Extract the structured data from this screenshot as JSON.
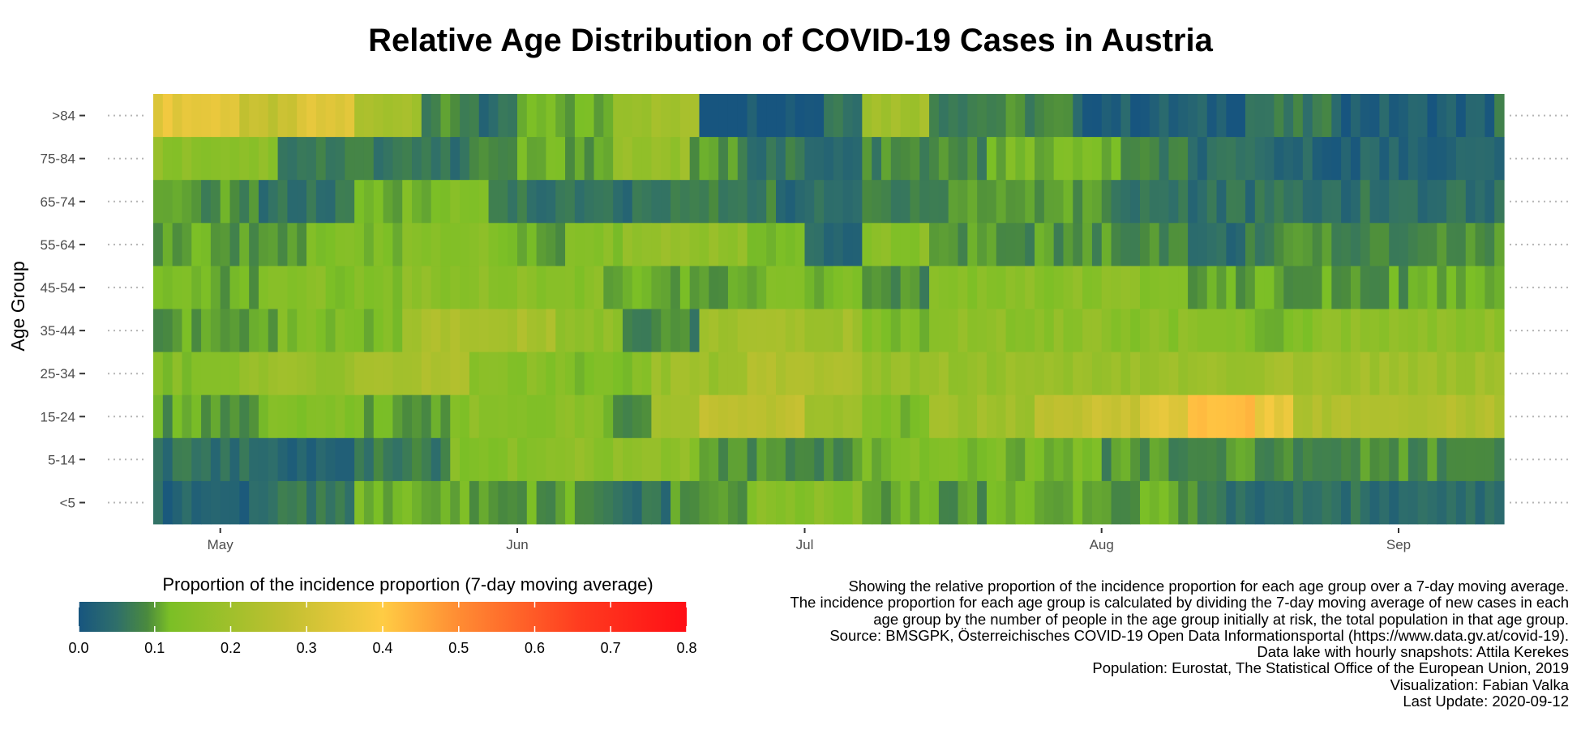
{
  "title": "Relative Age Distribution of COVID-19 Cases in Austria",
  "y_axis_title": "Age Group",
  "legend": {
    "title": "Proportion of the incidence proportion (7-day moving average)",
    "ticks": [
      "0.0",
      "0.1",
      "0.2",
      "0.3",
      "0.4",
      "0.5",
      "0.6",
      "0.7",
      "0.8"
    ],
    "range": [
      0,
      0.8
    ],
    "colors": [
      "#17557f",
      "#2f6f6a",
      "#4a8a3e",
      "#7bbf26",
      "#c0c030",
      "#ffcc44",
      "#ff8c33",
      "#ff3b1f",
      "#ff0e15"
    ],
    "color_stops": [
      0.0,
      0.05,
      0.09,
      0.12,
      0.27,
      0.4,
      0.5,
      0.66,
      0.8
    ]
  },
  "caption": [
    "Showing the relative proportion of the incidence proportion for each age group over a 7-day moving average.",
    "The incidence proportion for each age group is calculated by dividing the 7-day moving average of new cases in each",
    "age group by the number of people in the age group initially at risk, the total population in that age group.",
    "Source: BMSGPK, Österreichisches COVID-19 Open Data Informationsportal (https://www.data.gv.at/covid-19).",
    "Data lake with hourly snapshots: Attila Kerekes",
    "Population: Eurostat, The Statistical Office of the European Union, 2019",
    "Visualization: Fabian Valka",
    "Last Update: 2020-09-12"
  ],
  "chart_data": {
    "type": "heatmap",
    "title": "Relative Age Distribution of COVID-19 Cases in Austria",
    "ylabel": "Age Group",
    "xlabel": "",
    "x_ticks": [
      "May",
      "Jun",
      "Jul",
      "Aug",
      "Sep"
    ],
    "x_tick_dates": [
      "2020-05-01",
      "2020-06-01",
      "2020-07-01",
      "2020-08-01",
      "2020-09-01"
    ],
    "x_range": [
      "2020-04-24",
      "2020-09-12"
    ],
    "grid": false,
    "rows": [
      {
        "label": ">84",
        "segments": [
          {
            "from": "2020-04-24",
            "value": 0.35
          },
          {
            "from": "2020-05-03",
            "value": 0.27
          },
          {
            "from": "2020-05-09",
            "value": 0.33
          },
          {
            "from": "2020-05-15",
            "value": 0.22
          },
          {
            "from": "2020-05-22",
            "value": 0.08
          },
          {
            "from": "2020-05-28",
            "value": 0.04
          },
          {
            "from": "2020-06-01",
            "value": 0.11
          },
          {
            "from": "2020-06-11",
            "value": 0.2
          },
          {
            "from": "2020-06-19",
            "value": 0.22
          },
          {
            "from": "2020-06-20",
            "value": 0.01
          },
          {
            "from": "2020-07-03",
            "value": 0.07
          },
          {
            "from": "2020-07-07",
            "value": 0.21
          },
          {
            "from": "2020-07-14",
            "value": 0.08
          },
          {
            "from": "2020-07-29",
            "value": 0.02
          },
          {
            "from": "2020-08-16",
            "value": 0.06
          },
          {
            "from": "2020-08-26",
            "value": 0.02
          },
          {
            "from": "2020-09-11",
            "value": 0.08
          }
        ]
      },
      {
        "label": "75-84",
        "segments": [
          {
            "from": "2020-04-24",
            "value": 0.16
          },
          {
            "from": "2020-05-07",
            "value": 0.07
          },
          {
            "from": "2020-05-23",
            "value": 0.05
          },
          {
            "from": "2020-05-27",
            "value": 0.08
          },
          {
            "from": "2020-06-01",
            "value": 0.11
          },
          {
            "from": "2020-06-11",
            "value": 0.18
          },
          {
            "from": "2020-06-19",
            "value": 0.09
          },
          {
            "from": "2020-06-25",
            "value": 0.06
          },
          {
            "from": "2020-07-01",
            "value": 0.03
          },
          {
            "from": "2020-07-07",
            "value": 0.08
          },
          {
            "from": "2020-07-20",
            "value": 0.12
          },
          {
            "from": "2020-08-03",
            "value": 0.07
          },
          {
            "from": "2020-08-10",
            "value": 0.04
          },
          {
            "from": "2020-08-20",
            "value": 0.03
          }
        ]
      },
      {
        "label": "65-74",
        "segments": [
          {
            "from": "2020-04-24",
            "value": 0.09
          },
          {
            "from": "2020-05-05",
            "value": 0.05
          },
          {
            "from": "2020-05-15",
            "value": 0.11
          },
          {
            "from": "2020-05-20",
            "value": 0.13
          },
          {
            "from": "2020-05-29",
            "value": 0.07
          },
          {
            "from": "2020-06-03",
            "value": 0.05
          },
          {
            "from": "2020-06-16",
            "value": 0.07
          },
          {
            "from": "2020-06-28",
            "value": 0.04
          },
          {
            "from": "2020-07-07",
            "value": 0.08
          },
          {
            "from": "2020-07-16",
            "value": 0.1
          },
          {
            "from": "2020-08-02",
            "value": 0.06
          },
          {
            "from": "2020-08-10",
            "value": 0.05
          }
        ]
      },
      {
        "label": "55-64",
        "segments": [
          {
            "from": "2020-04-24",
            "value": 0.1
          },
          {
            "from": "2020-05-10",
            "value": 0.12
          },
          {
            "from": "2020-05-20",
            "value": 0.15
          },
          {
            "from": "2020-05-30",
            "value": 0.1
          },
          {
            "from": "2020-06-06",
            "value": 0.14
          },
          {
            "from": "2020-06-12",
            "value": 0.17
          },
          {
            "from": "2020-06-25",
            "value": 0.11
          },
          {
            "from": "2020-07-01",
            "value": 0.03
          },
          {
            "from": "2020-07-07",
            "value": 0.15
          },
          {
            "from": "2020-07-14",
            "value": 0.09
          },
          {
            "from": "2020-08-10",
            "value": 0.04
          },
          {
            "from": "2020-08-16",
            "value": 0.08
          },
          {
            "from": "2020-09-01",
            "value": 0.09
          }
        ]
      },
      {
        "label": "45-54",
        "segments": [
          {
            "from": "2020-04-24",
            "value": 0.11
          },
          {
            "from": "2020-05-05",
            "value": 0.14
          },
          {
            "from": "2020-05-20",
            "value": 0.16
          },
          {
            "from": "2020-06-02",
            "value": 0.15
          },
          {
            "from": "2020-06-10",
            "value": 0.1
          },
          {
            "from": "2020-06-25",
            "value": 0.12
          },
          {
            "from": "2020-07-07",
            "value": 0.08
          },
          {
            "from": "2020-07-14",
            "value": 0.15
          },
          {
            "from": "2020-08-10",
            "value": 0.11
          },
          {
            "from": "2020-08-26",
            "value": 0.1
          }
        ]
      },
      {
        "label": "35-44",
        "segments": [
          {
            "from": "2020-04-24",
            "value": 0.1
          },
          {
            "from": "2020-05-07",
            "value": 0.13
          },
          {
            "from": "2020-05-20",
            "value": 0.22
          },
          {
            "from": "2020-06-05",
            "value": 0.17
          },
          {
            "from": "2020-06-12",
            "value": 0.08
          },
          {
            "from": "2020-06-20",
            "value": 0.2
          },
          {
            "from": "2020-07-07",
            "value": 0.13
          },
          {
            "from": "2020-07-14",
            "value": 0.16
          },
          {
            "from": "2020-08-01",
            "value": 0.15
          },
          {
            "from": "2020-08-15",
            "value": 0.13
          },
          {
            "from": "2020-08-23",
            "value": 0.16
          }
        ]
      },
      {
        "label": "25-34",
        "segments": [
          {
            "from": "2020-04-24",
            "value": 0.14
          },
          {
            "from": "2020-05-03",
            "value": 0.18
          },
          {
            "from": "2020-05-15",
            "value": 0.22
          },
          {
            "from": "2020-05-27",
            "value": 0.15
          },
          {
            "from": "2020-06-07",
            "value": 0.13
          },
          {
            "from": "2020-06-15",
            "value": 0.19
          },
          {
            "from": "2020-06-25",
            "value": 0.24
          },
          {
            "from": "2020-07-07",
            "value": 0.18
          },
          {
            "from": "2020-08-10",
            "value": 0.2
          }
        ]
      },
      {
        "label": "15-24",
        "segments": [
          {
            "from": "2020-04-24",
            "value": 0.1
          },
          {
            "from": "2020-05-05",
            "value": 0.14
          },
          {
            "from": "2020-05-15",
            "value": 0.11
          },
          {
            "from": "2020-05-25",
            "value": 0.15
          },
          {
            "from": "2020-06-10",
            "value": 0.1
          },
          {
            "from": "2020-06-15",
            "value": 0.22
          },
          {
            "from": "2020-06-20",
            "value": 0.26
          },
          {
            "from": "2020-07-01",
            "value": 0.2
          },
          {
            "from": "2020-07-07",
            "value": 0.13
          },
          {
            "from": "2020-07-14",
            "value": 0.2
          },
          {
            "from": "2020-07-25",
            "value": 0.28
          },
          {
            "from": "2020-08-05",
            "value": 0.33
          },
          {
            "from": "2020-08-10",
            "value": 0.42
          },
          {
            "from": "2020-08-17",
            "value": 0.36
          },
          {
            "from": "2020-08-21",
            "value": 0.24
          }
        ]
      },
      {
        "label": "5-14",
        "segments": [
          {
            "from": "2020-04-24",
            "value": 0.05
          },
          {
            "from": "2020-05-07",
            "value": 0.02
          },
          {
            "from": "2020-05-15",
            "value": 0.07
          },
          {
            "from": "2020-05-25",
            "value": 0.14
          },
          {
            "from": "2020-06-05",
            "value": 0.16
          },
          {
            "from": "2020-06-20",
            "value": 0.09
          },
          {
            "from": "2020-07-07",
            "value": 0.13
          },
          {
            "from": "2020-07-14",
            "value": 0.12
          },
          {
            "from": "2020-08-01",
            "value": 0.09
          }
        ]
      },
      {
        "label": "<5",
        "segments": [
          {
            "from": "2020-04-24",
            "value": 0.03
          },
          {
            "from": "2020-05-05",
            "value": 0.06
          },
          {
            "from": "2020-05-15",
            "value": 0.12
          },
          {
            "from": "2020-05-27",
            "value": 0.1
          },
          {
            "from": "2020-06-10",
            "value": 0.05
          },
          {
            "from": "2020-06-17",
            "value": 0.09
          },
          {
            "from": "2020-06-25",
            "value": 0.15
          },
          {
            "from": "2020-07-07",
            "value": 0.1
          },
          {
            "from": "2020-08-10",
            "value": 0.08
          },
          {
            "from": "2020-08-14",
            "value": 0.05
          }
        ]
      }
    ]
  }
}
